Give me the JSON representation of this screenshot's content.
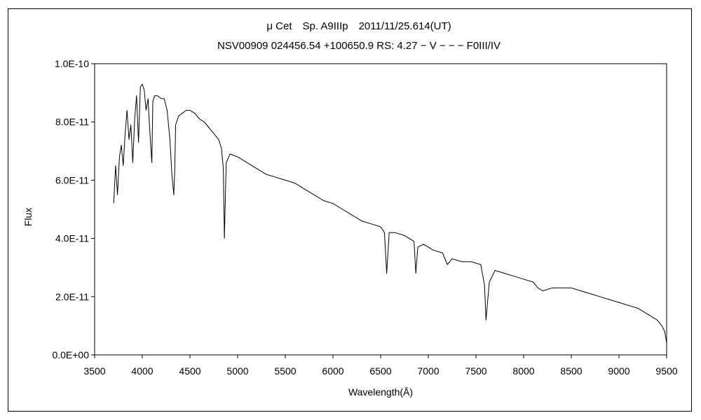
{
  "chart_data": {
    "type": "line",
    "title": "μ Cet　Sp. A9IIIp　2011/11/25.614(UT)",
    "subtitle": "NSV00909 024456.54 +100650.9 RS: 4.27 − V − − − F0III/IV",
    "xlabel": "Wavelength(Å)",
    "ylabel": "Flux",
    "xlim": [
      3500,
      9500
    ],
    "ylim": [
      0,
      1e-10
    ],
    "xticks": [
      "3500",
      "4000",
      "4500",
      "5000",
      "5500",
      "6000",
      "6500",
      "7000",
      "7500",
      "8000",
      "8500",
      "9000",
      "9500"
    ],
    "yticks": [
      "0.0E+00",
      "2.0E-11",
      "4.0E-11",
      "6.0E-11",
      "8.0E-11",
      "1.0E-10"
    ],
    "grid": false,
    "legend": "none",
    "series": [
      {
        "color": "#000000",
        "x": [
          3700,
          3720,
          3740,
          3760,
          3780,
          3800,
          3820,
          3840,
          3860,
          3880,
          3900,
          3920,
          3940,
          3960,
          3980,
          4000,
          4020,
          4040,
          4060,
          4080,
          4100,
          4110,
          4130,
          4160,
          4200,
          4230,
          4260,
          4290,
          4310,
          4330,
          4340,
          4350,
          4380,
          4420,
          4460,
          4500,
          4550,
          4600,
          4650,
          4700,
          4750,
          4800,
          4830,
          4850,
          4861,
          4880,
          4920,
          5000,
          5100,
          5200,
          5300,
          5400,
          5500,
          5600,
          5700,
          5800,
          5900,
          6000,
          6100,
          6200,
          6300,
          6400,
          6500,
          6540,
          6563,
          6590,
          6650,
          6750,
          6850,
          6869,
          6890,
          6950,
          7050,
          7150,
          7200,
          7250,
          7350,
          7450,
          7550,
          7590,
          7605,
          7640,
          7700,
          7800,
          7900,
          8000,
          8100,
          8150,
          8200,
          8300,
          8400,
          8500,
          8600,
          8700,
          8800,
          8900,
          9000,
          9100,
          9200,
          9300,
          9400,
          9450,
          9480,
          9500
        ],
        "y": [
          5.2e-11,
          6.5e-11,
          5.5e-11,
          6.8e-11,
          7.2e-11,
          6.5e-11,
          7.6e-11,
          8.4e-11,
          7.4e-11,
          7.9e-11,
          6.6e-11,
          8.1e-11,
          8.9e-11,
          7.3e-11,
          9.2e-11,
          9.3e-11,
          9.1e-11,
          8.4e-11,
          8.8e-11,
          7.6e-11,
          6.6e-11,
          8.7e-11,
          8.9e-11,
          8.9e-11,
          8.8e-11,
          8.8e-11,
          8.4e-11,
          7.4e-11,
          6.2e-11,
          5.5e-11,
          6.3e-11,
          7.9e-11,
          8.2e-11,
          8.3e-11,
          8.4e-11,
          8.4e-11,
          8.3e-11,
          8.1e-11,
          8e-11,
          7.8e-11,
          7.6e-11,
          7.4e-11,
          7.1e-11,
          6.4e-11,
          4e-11,
          6.6e-11,
          6.9e-11,
          6.8e-11,
          6.6e-11,
          6.4e-11,
          6.2e-11,
          6.1e-11,
          6e-11,
          5.9e-11,
          5.7e-11,
          5.5e-11,
          5.3e-11,
          5.2e-11,
          5e-11,
          4.8e-11,
          4.6e-11,
          4.5e-11,
          4.4e-11,
          4.2e-11,
          2.8e-11,
          4.2e-11,
          4.2e-11,
          4.1e-11,
          3.9e-11,
          2.8e-11,
          3.7e-11,
          3.8e-11,
          3.6e-11,
          3.5e-11,
          3.1e-11,
          3.3e-11,
          3.2e-11,
          3.2e-11,
          3.1e-11,
          2.4e-11,
          1.2e-11,
          2.5e-11,
          2.9e-11,
          2.8e-11,
          2.7e-11,
          2.6e-11,
          2.5e-11,
          2.3e-11,
          2.2e-11,
          2.3e-11,
          2.3e-11,
          2.3e-11,
          2.2e-11,
          2.1e-11,
          2e-11,
          1.9e-11,
          1.8e-11,
          1.7e-11,
          1.6e-11,
          1.4e-11,
          1.2e-11,
          1e-11,
          8e-12,
          4e-12
        ]
      }
    ]
  }
}
